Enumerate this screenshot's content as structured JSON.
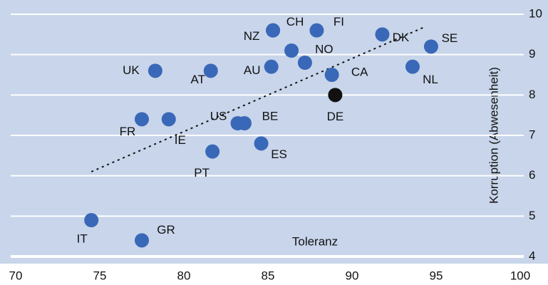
{
  "chart_data": {
    "type": "scatter",
    "xlabel": "Toleranz",
    "ylabel": "Korruption (Abwesenheit)",
    "categories": [
      "IT",
      "GR",
      "FR",
      "IE",
      "UK",
      "AT",
      "PT",
      "US",
      "BE",
      "ES",
      "AU",
      "NZ",
      "CH",
      "FI",
      null,
      "NO",
      "CA",
      "DE",
      "DK",
      "SE",
      "NL"
    ],
    "x": [
      74.5,
      77.5,
      77.5,
      79.1,
      78.3,
      81.6,
      81.7,
      83.2,
      83.6,
      84.6,
      85.2,
      85.3,
      85.3,
      87.9,
      86.4,
      87.2,
      88.8,
      89.0,
      91.8,
      94.7,
      93.6
    ],
    "values": [
      4.9,
      4.4,
      7.4,
      7.4,
      8.6,
      8.6,
      6.6,
      7.3,
      7.3,
      6.8,
      8.7,
      9.6,
      9.6,
      9.6,
      9.1,
      8.8,
      8.5,
      8.0,
      9.5,
      9.2,
      8.7
    ],
    "colors": [
      "#3a68b8",
      "#3a68b8",
      "#3a68b8",
      "#3a68b8",
      "#3a68b8",
      "#3a68b8",
      "#3a68b8",
      "#3a68b8",
      "#3a68b8",
      "#3a68b8",
      "#3a68b8",
      "#3a68b8",
      "#3a68b8",
      "#3a68b8",
      "#3a68b8",
      "#3a68b8",
      "#3a68b8",
      "#111111",
      "#3a68b8",
      "#3a68b8",
      "#3a68b8"
    ],
    "trendline": {
      "x": [
        74.5,
        94.4
      ],
      "y": [
        6.1,
        9.7
      ]
    },
    "xlim": [
      70,
      100
    ],
    "xticks": [
      70,
      75,
      80,
      85,
      90,
      95,
      100
    ],
    "ylim": [
      4,
      10
    ],
    "yticks": [
      4,
      5,
      6,
      7,
      8,
      9,
      10
    ],
    "grid": true
  }
}
